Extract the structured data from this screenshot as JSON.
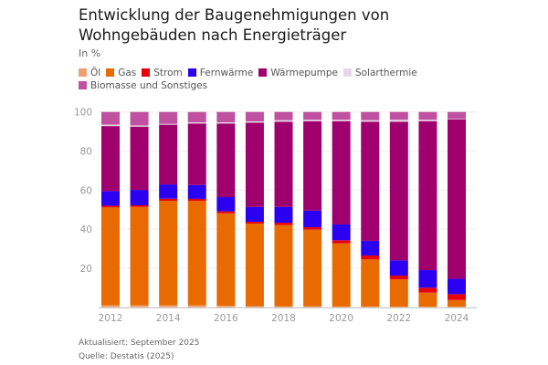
{
  "title": "Entwicklung der Baugenehmigungen von Wohngebäuden nach Energieträger",
  "subtitle": "In %",
  "footer": {
    "updated": "Aktualisiert: September 2025",
    "source": "Quelle: Destatis (2025)"
  },
  "chart_data": {
    "type": "bar",
    "stacked": true,
    "title": "Entwicklung der Baugenehmigungen von Wohngebäuden nach Energieträger",
    "ylabel": "In %",
    "ylim": [
      0,
      100
    ],
    "yticks": [
      20,
      40,
      60,
      80,
      100
    ],
    "grid": true,
    "legend": "top",
    "categories": [
      "2012",
      "2013",
      "2014",
      "2015",
      "2016",
      "2017",
      "2018",
      "2019",
      "2020",
      "2021",
      "2022",
      "2023",
      "2024"
    ],
    "xtick_labels": [
      "2012",
      "2014",
      "2016",
      "2018",
      "2020",
      "2022",
      "2024"
    ],
    "series": [
      {
        "name": "Öl",
        "color": "#f0a070",
        "values": [
          1.0,
          1.0,
          1.0,
          1.0,
          0.8,
          0.5,
          0.4,
          0.4,
          0.3,
          0.3,
          0.2,
          0.2,
          0.2
        ]
      },
      {
        "name": "Gas",
        "color": "#e86a00",
        "values": [
          50.1,
          50.4,
          53.5,
          53.5,
          47.3,
          42.3,
          41.7,
          39.3,
          32.4,
          24.2,
          14.1,
          7.3,
          3.5
        ]
      },
      {
        "name": "Strom",
        "color": "#e8000b",
        "values": [
          0.9,
          0.8,
          1.1,
          1.0,
          1.0,
          1.0,
          1.2,
          1.3,
          1.6,
          2.0,
          1.9,
          2.5,
          3.0
        ]
      },
      {
        "name": "Fernwärme",
        "color": "#2b00f0",
        "values": [
          7.5,
          7.9,
          7.3,
          7.1,
          7.3,
          7.6,
          8.1,
          8.5,
          8.1,
          7.5,
          7.8,
          9.0,
          7.9
        ]
      },
      {
        "name": "Wärmepumpe",
        "color": "#a0006e",
        "values": [
          33.3,
          32.4,
          30.6,
          31.5,
          37.7,
          43.1,
          43.6,
          45.8,
          52.9,
          61.0,
          71.0,
          76.3,
          81.7
        ]
      },
      {
        "name": "Solarthermie",
        "color": "#e8d8e4",
        "values": [
          0.7,
          0.6,
          0.4,
          0.6,
          0.6,
          0.7,
          0.8,
          0.7,
          0.7,
          0.8,
          1.0,
          0.7,
          0.3
        ]
      },
      {
        "name": "Biomasse und Sonstiges",
        "color": "#c050a0",
        "values": [
          6.5,
          6.9,
          6.1,
          5.3,
          5.3,
          4.8,
          4.2,
          4.0,
          4.0,
          4.2,
          4.0,
          4.0,
          3.4
        ]
      }
    ]
  }
}
